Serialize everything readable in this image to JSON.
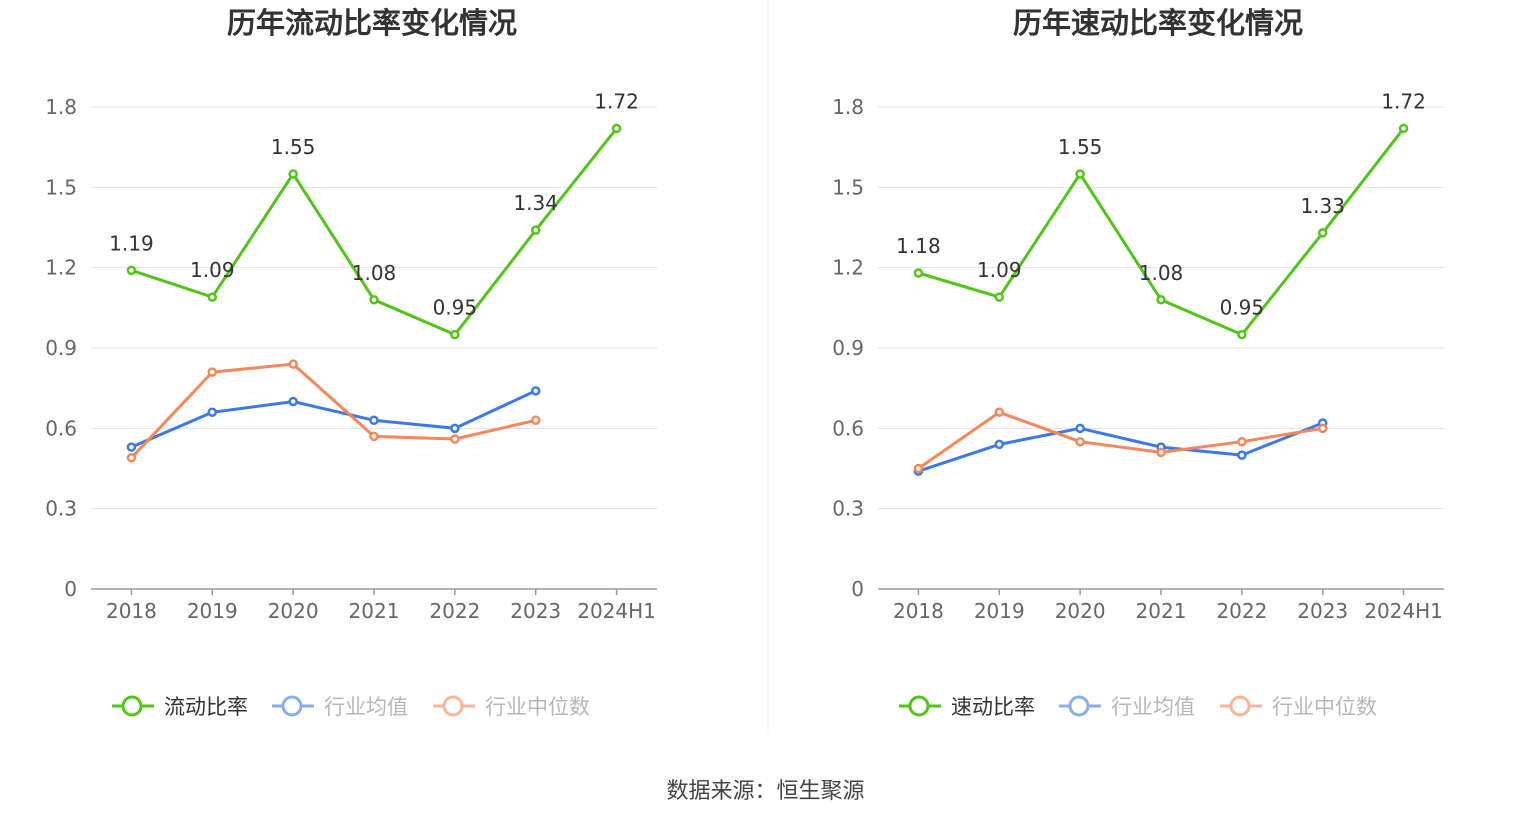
{
  "colors": {
    "main": "#52c41a",
    "avg": "#3c78e6",
    "median": "#f5875a",
    "grid": "#e0e3eb",
    "axis": "#999999"
  },
  "chart_data": [
    {
      "type": "line",
      "title": "历年流动比率变化情况",
      "categories": [
        "2018",
        "2019",
        "2020",
        "2021",
        "2022",
        "2023",
        "2024H1"
      ],
      "ylim": [
        0,
        1.8
      ],
      "yticks": [
        "0",
        "0.3",
        "0.6",
        "0.9",
        "1.2",
        "1.5",
        "1.8"
      ],
      "grid": true,
      "legend_position": "bottom",
      "series": [
        {
          "name": "流动比率",
          "values": [
            1.19,
            1.09,
            1.55,
            1.08,
            0.95,
            1.34,
            1.72
          ],
          "labels": [
            "1.19",
            "1.09",
            "1.55",
            "1.08",
            "0.95",
            "1.34",
            "1.72"
          ]
        },
        {
          "name": "行业均值",
          "values": [
            0.53,
            0.66,
            0.7,
            0.63,
            0.6,
            0.74,
            null
          ]
        },
        {
          "name": "行业中位数",
          "values": [
            0.49,
            0.81,
            0.84,
            0.57,
            0.56,
            0.63,
            null
          ]
        }
      ]
    },
    {
      "type": "line",
      "title": "历年速动比率变化情况",
      "categories": [
        "2018",
        "2019",
        "2020",
        "2021",
        "2022",
        "2023",
        "2024H1"
      ],
      "ylim": [
        0,
        1.8
      ],
      "yticks": [
        "0",
        "0.3",
        "0.6",
        "0.9",
        "1.2",
        "1.5",
        "1.8"
      ],
      "grid": true,
      "legend_position": "bottom",
      "series": [
        {
          "name": "速动比率",
          "values": [
            1.18,
            1.09,
            1.55,
            1.08,
            0.95,
            1.33,
            1.72
          ],
          "labels": [
            "1.18",
            "1.09",
            "1.55",
            "1.08",
            "0.95",
            "1.33",
            "1.72"
          ]
        },
        {
          "name": "行业均值",
          "values": [
            0.44,
            0.54,
            0.6,
            0.53,
            0.5,
            0.62,
            null
          ]
        },
        {
          "name": "行业中位数",
          "values": [
            0.45,
            0.66,
            0.55,
            0.51,
            0.55,
            0.6,
            null
          ]
        }
      ]
    }
  ],
  "footer": {
    "source": "数据来源：恒生聚源"
  }
}
